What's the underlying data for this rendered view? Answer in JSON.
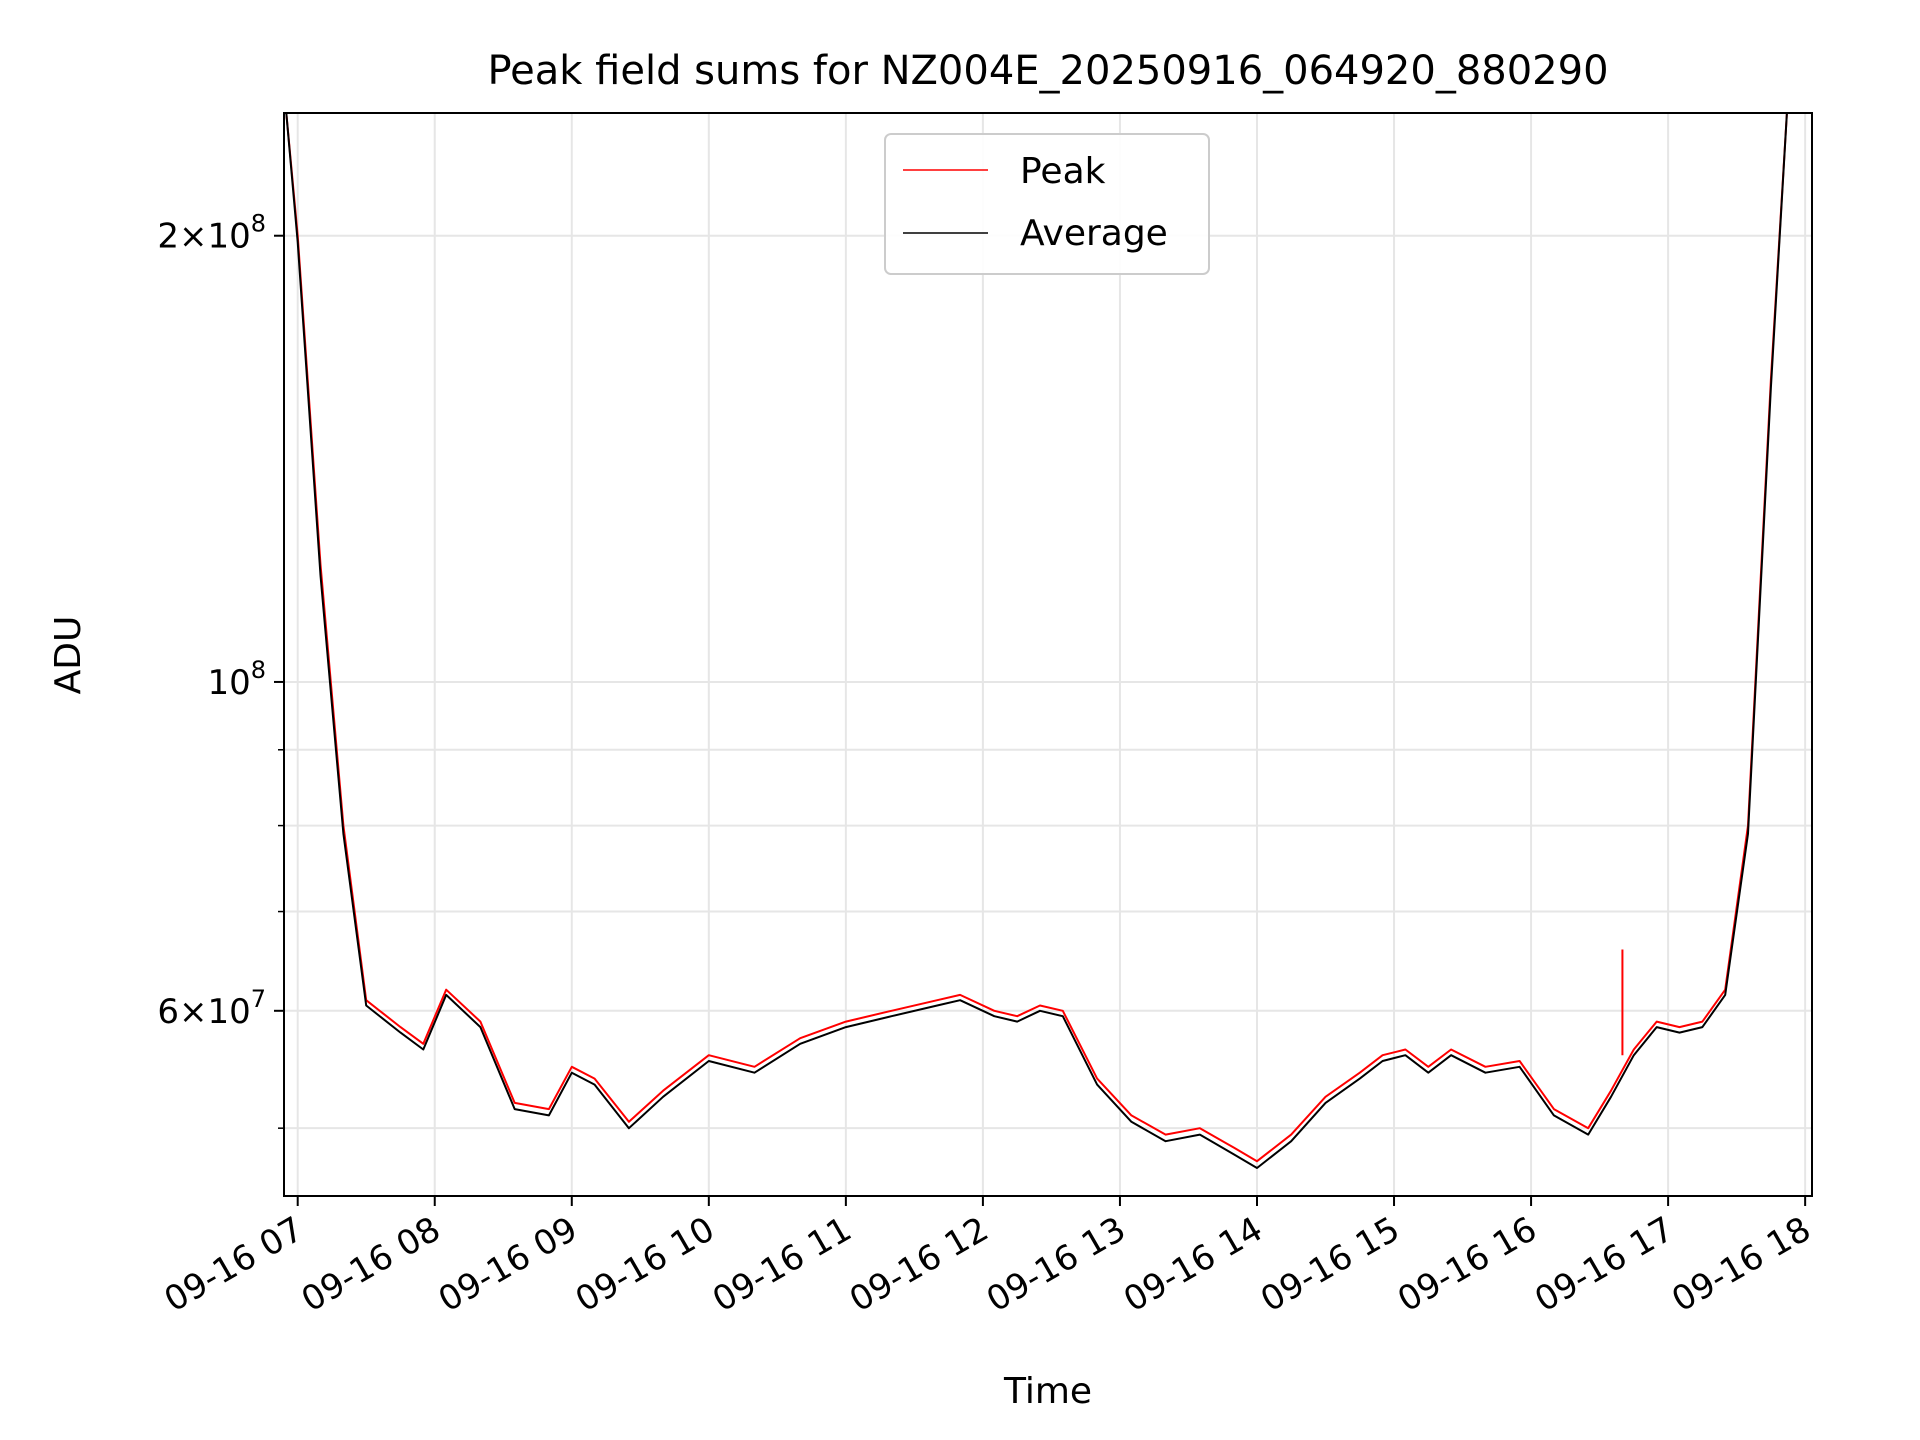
{
  "chart_data": {
    "type": "line",
    "title": "Peak field sums for NZ004E_20250916_064920_880290",
    "xlabel": "Time",
    "ylabel": "ADU",
    "yscale": "log",
    "ylim": [
      45000000,
      242000000
    ],
    "xlim": [
      "09-16 06:54",
      "09-16 18:03"
    ],
    "grid": true,
    "legend_location": "upper center",
    "x_ticks": [
      "09-16 07",
      "09-16 08",
      "09-16 09",
      "09-16 10",
      "09-16 11",
      "09-16 12",
      "09-16 13",
      "09-16 14",
      "09-16 15",
      "09-16 16",
      "09-16 17",
      "09-16 18"
    ],
    "y_ticks": [
      {
        "value": 60000000,
        "base": "6",
        "exp": "7"
      },
      {
        "value": 100000000,
        "base": "",
        "exp": "8"
      },
      {
        "value": 200000000,
        "base": "2",
        "exp": "8"
      }
    ],
    "y_minor_ticks": [
      50000000,
      70000000,
      80000000,
      90000000
    ],
    "x": [
      "09-16 06:55",
      "09-16 07:00",
      "09-16 07:10",
      "09-16 07:20",
      "09-16 07:30",
      "09-16 07:45",
      "09-16 07:55",
      "09-16 08:05",
      "09-16 08:20",
      "09-16 08:35",
      "09-16 08:50",
      "09-16 09:00",
      "09-16 09:10",
      "09-16 09:25",
      "09-16 09:40",
      "09-16 10:00",
      "09-16 10:20",
      "09-16 10:40",
      "09-16 11:00",
      "09-16 11:20",
      "09-16 11:40",
      "09-16 11:50",
      "09-16 12:05",
      "09-16 12:15",
      "09-16 12:25",
      "09-16 12:35",
      "09-16 12:50",
      "09-16 13:05",
      "09-16 13:20",
      "09-16 13:35",
      "09-16 13:50",
      "09-16 14:00",
      "09-16 14:15",
      "09-16 14:30",
      "09-16 14:45",
      "09-16 14:55",
      "09-16 15:05",
      "09-16 15:15",
      "09-16 15:25",
      "09-16 15:40",
      "09-16 15:55",
      "09-16 16:10",
      "09-16 16:25",
      "09-16 16:35",
      "09-16 16:45",
      "09-16 16:55",
      "09-16 17:05",
      "09-16 17:15",
      "09-16 17:25",
      "09-16 17:35",
      "09-16 17:45",
      "09-16 17:52"
    ],
    "series": [
      {
        "name": "Peak",
        "color": "#ff0000",
        "values": [
          242000000,
          200000000,
          120000000,
          80000000,
          61000000,
          58500000,
          57000000,
          62000000,
          59000000,
          52000000,
          51500000,
          55000000,
          54000000,
          50500000,
          53000000,
          56000000,
          55000000,
          57500000,
          59000000,
          60000000,
          61000000,
          61500000,
          60000000,
          59500000,
          60500000,
          60000000,
          54000000,
          51000000,
          49500000,
          50000000,
          48500000,
          47500000,
          49500000,
          52500000,
          54500000,
          56000000,
          56500000,
          55000000,
          56500000,
          55000000,
          55500000,
          51500000,
          50000000,
          53000000,
          56500000,
          59000000,
          58500000,
          59000000,
          62000000,
          80000000,
          160000000,
          242000000
        ]
      },
      {
        "name": "Average",
        "color": "#000000",
        "values": [
          242000000,
          198000000,
          118000000,
          79000000,
          60500000,
          58000000,
          56500000,
          61500000,
          58500000,
          51500000,
          51000000,
          54500000,
          53500000,
          50000000,
          52500000,
          55500000,
          54500000,
          57000000,
          58500000,
          59500000,
          60500000,
          61000000,
          59500000,
          59000000,
          60000000,
          59500000,
          53500000,
          50500000,
          49000000,
          49500000,
          48000000,
          47000000,
          49000000,
          52000000,
          54000000,
          55500000,
          56000000,
          54500000,
          56000000,
          54500000,
          55000000,
          51000000,
          49500000,
          52500000,
          56000000,
          58500000,
          58000000,
          58500000,
          61500000,
          79000000,
          158000000,
          242000000
        ]
      }
    ],
    "annotations": [
      {
        "series": "Peak",
        "x": "09-16 16:40",
        "from": 56000000,
        "to": 66000000,
        "kind": "spike"
      }
    ]
  }
}
